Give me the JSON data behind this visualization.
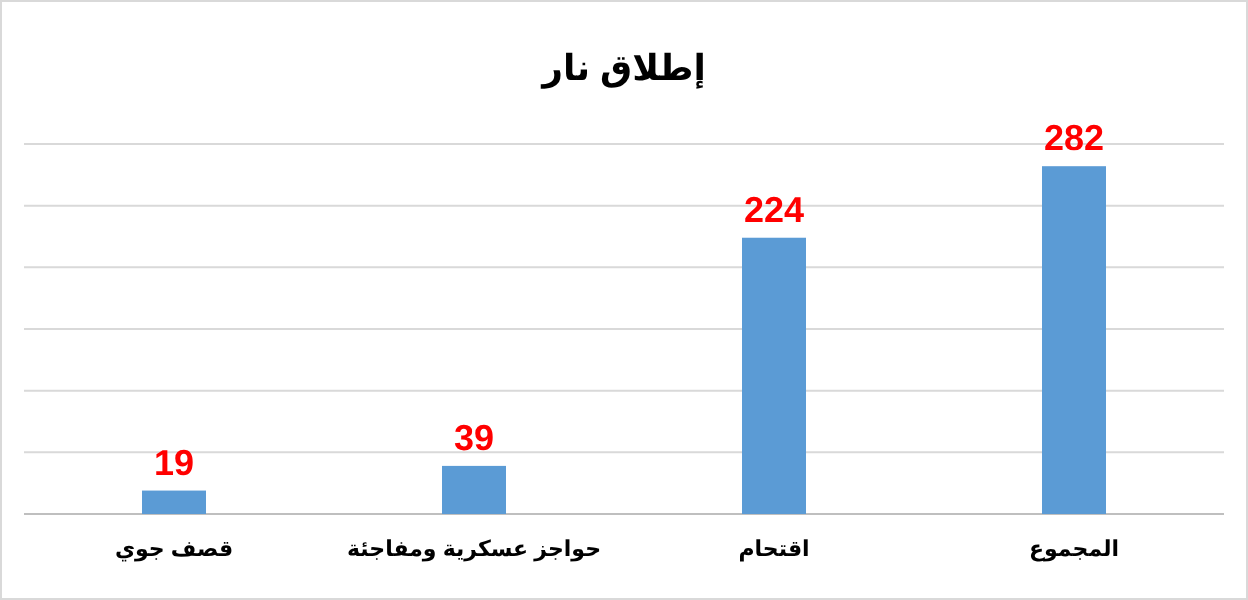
{
  "chart_data": {
    "type": "bar",
    "title": "إطلاق نار",
    "categories": [
      "قصف جوي",
      "حواجز عسكرية ومفاجئة",
      "اقتحام",
      "المجموع"
    ],
    "values": [
      19,
      39,
      224,
      282
    ],
    "color": "#5b9bd5",
    "data_labels": true,
    "ylim": [
      0,
      300
    ],
    "yticks": [
      {
        "value": 0,
        "label": null
      },
      {
        "value": 50,
        "label": null
      },
      {
        "value": 100,
        "label": null
      },
      {
        "value": 150,
        "label": null
      },
      {
        "value": 200,
        "label": null
      },
      {
        "value": 250,
        "label": null
      },
      {
        "value": 300,
        "label": null
      }
    ],
    "grid": "y",
    "tick_labels": "x"
  }
}
